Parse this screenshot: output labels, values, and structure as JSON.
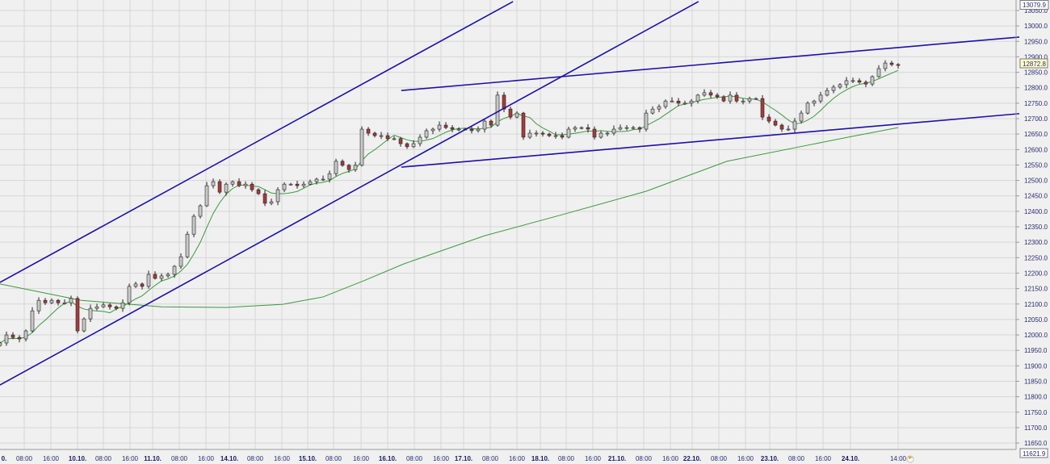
{
  "chart_data": {
    "type": "candlestick",
    "ylim": [
      11621.9,
      13079.9
    ],
    "y_ticks": [
      11650,
      11700,
      11750,
      11800,
      11850,
      11900,
      11950,
      12000,
      12050,
      12100,
      12150,
      12200,
      12250,
      12300,
      12350,
      12400,
      12450,
      12500,
      12550,
      12600,
      12650,
      12700,
      12750,
      12800,
      12850,
      12900,
      12950,
      13000,
      13050
    ],
    "x_tick_labels": [
      "0.",
      "08:00",
      "16:00",
      "10.10.",
      "08:00",
      "16:00",
      "11.10.",
      "08:00",
      "16:00",
      "14.10.",
      "08:00",
      "16:00",
      "15.10.",
      "08:00",
      "16:00",
      "16.10.",
      "08:00",
      "16:00",
      "17.10.",
      "08:00",
      "16:00",
      "18.10.",
      "08:00",
      "16:00",
      "21.10.",
      "08:00",
      "16:00",
      "22.10.",
      "08:00",
      "16:00",
      "23.10.",
      "08:00",
      "16:00",
      "24.10.",
      "14:00"
    ],
    "grid": true,
    "axis_max_label": "13079.9",
    "axis_min_label": "11621.9",
    "last_price_label": "12872.8",
    "colors": {
      "up": "#c8c8c8",
      "down": "#a83a3a",
      "ma": "#3a9a3a",
      "trendline": "#1e10a8",
      "axis_text": "#2a2a72",
      "background": "#f0f0f0",
      "grid": "#d6d6d6"
    },
    "close": [
      11974,
      12000,
      11992,
      11987,
      12013,
      12078,
      12112,
      12104,
      12112,
      12104,
      12104,
      12118,
      12013,
      12052,
      12086,
      12091,
      12097,
      12091,
      12086,
      12104,
      12157,
      12165,
      12157,
      12196,
      12183,
      12191,
      12196,
      12222,
      12253,
      12326,
      12384,
      12418,
      12483,
      12496,
      12462,
      12488,
      12496,
      12483,
      12488,
      12470,
      12457,
      12426,
      12431,
      12470,
      12488,
      12488,
      12483,
      12488,
      12496,
      12504,
      12504,
      12522,
      12562,
      12549,
      12535,
      12549,
      12666,
      12653,
      12645,
      12645,
      12635,
      12635,
      12619,
      12609,
      12619,
      12640,
      12661,
      12666,
      12679,
      12671,
      12666,
      12666,
      12666,
      12661,
      12666,
      12692,
      12679,
      12776,
      12731,
      12705,
      12718,
      12640,
      12653,
      12653,
      12650,
      12645,
      12645,
      12640,
      12666,
      12671,
      12671,
      12666,
      12640,
      12653,
      12653,
      12666,
      12671,
      12671,
      12671,
      12666,
      12718,
      12731,
      12739,
      12757,
      12757,
      12750,
      12750,
      12757,
      12776,
      12784,
      12776,
      12771,
      12757,
      12776,
      12757,
      12757,
      12765,
      12765,
      12705,
      12692,
      12679,
      12666,
      12666,
      12692,
      12718,
      12750,
      12757,
      12776,
      12791,
      12802,
      12810,
      12823,
      12823,
      12818,
      12812,
      12836,
      12862,
      12880,
      12875,
      12872.8
    ],
    "long_ma": [
      {
        "i": 0,
        "v": 12165
      },
      {
        "i": 12.5,
        "v": 12112
      },
      {
        "i": 25,
        "v": 12091
      },
      {
        "i": 35,
        "v": 12089
      },
      {
        "i": 43.75,
        "v": 12099
      },
      {
        "i": 50,
        "v": 12123
      },
      {
        "i": 56.25,
        "v": 12175
      },
      {
        "i": 62.5,
        "v": 12230
      },
      {
        "i": 75,
        "v": 12321
      },
      {
        "i": 87.5,
        "v": 12392
      },
      {
        "i": 100,
        "v": 12465
      },
      {
        "i": 112.5,
        "v": 12562
      },
      {
        "i": 125,
        "v": 12614
      },
      {
        "i": 131.25,
        "v": 12640
      },
      {
        "i": 139,
        "v": 12671
      }
    ],
    "trendlines": [
      {
        "from": {
          "i": 0,
          "v": 12170
        },
        "to": {
          "i": 79.4,
          "v": 13079
        }
      },
      {
        "from": {
          "i": 0,
          "v": 11838
        },
        "to": {
          "i": 108.1,
          "v": 13079
        }
      },
      {
        "from": {
          "i": 62.1,
          "v": 12791
        },
        "to": {
          "i": 157.75,
          "v": 12964
        }
      },
      {
        "from": {
          "i": 62.1,
          "v": 12543
        },
        "to": {
          "i": 157.75,
          "v": 12716
        }
      }
    ]
  }
}
